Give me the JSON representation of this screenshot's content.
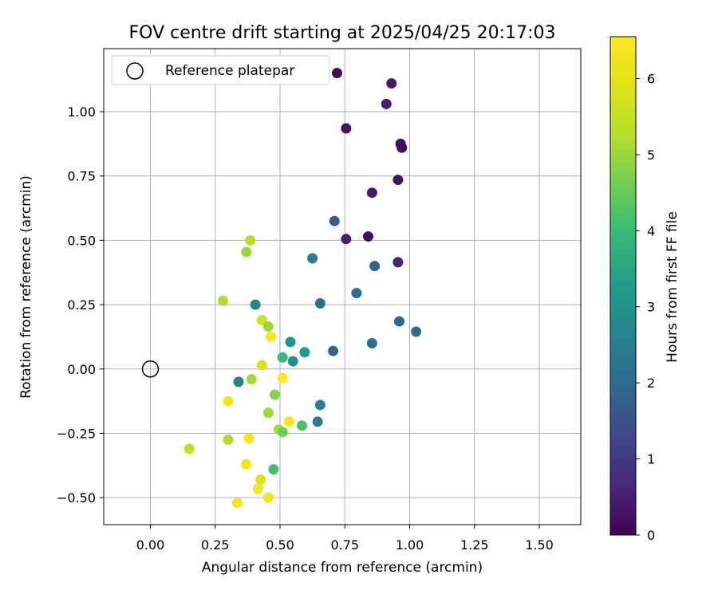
{
  "chart_data": {
    "type": "scatter",
    "title": "FOV centre drift starting at 2025/04/25 20:17:03",
    "xlabel": "Angular distance from reference (arcmin)",
    "ylabel": "Rotation from reference (arcmin)",
    "xlim": [
      -0.18,
      1.66
    ],
    "ylim": [
      -0.605,
      1.245
    ],
    "xticks": [
      0.0,
      0.25,
      0.5,
      0.75,
      1.0,
      1.25,
      1.5
    ],
    "xtick_labels": [
      "0.00",
      "0.25",
      "0.50",
      "0.75",
      "1.00",
      "1.25",
      "1.50"
    ],
    "yticks": [
      -0.5,
      -0.25,
      0.0,
      0.25,
      0.5,
      0.75,
      1.0
    ],
    "ytick_labels": [
      "−0.50",
      "−0.25",
      "0.00",
      "0.25",
      "0.50",
      "0.75",
      "1.00"
    ],
    "grid": true,
    "legend": {
      "placement": "top-left",
      "entries": [
        "Reference platepar"
      ]
    },
    "reference_point": {
      "x": 0.0,
      "y": 0.0,
      "marker": "open-circle"
    },
    "colorbar": {
      "label": "Hours from first FF file",
      "colormap": "viridis",
      "range": [
        0,
        6.55
      ],
      "ticks": [
        0,
        1,
        2,
        3,
        4,
        5,
        6
      ],
      "tick_labels": [
        "0",
        "1",
        "2",
        "3",
        "4",
        "5",
        "6"
      ]
    },
    "points": [
      {
        "x": 0.72,
        "y": 1.15,
        "c": 0.1
      },
      {
        "x": 0.93,
        "y": 1.11,
        "c": 0.4
      },
      {
        "x": 0.91,
        "y": 1.03,
        "c": 0.5
      },
      {
        "x": 0.755,
        "y": 0.935,
        "c": 0.3
      },
      {
        "x": 0.965,
        "y": 0.875,
        "c": 0.2
      },
      {
        "x": 0.97,
        "y": 0.86,
        "c": 0.1
      },
      {
        "x": 0.955,
        "y": 0.735,
        "c": 0.3
      },
      {
        "x": 0.855,
        "y": 0.685,
        "c": 0.4
      },
      {
        "x": 0.71,
        "y": 0.575,
        "c": 1.7
      },
      {
        "x": 0.755,
        "y": 0.505,
        "c": 0.5
      },
      {
        "x": 0.84,
        "y": 0.515,
        "c": 0.2
      },
      {
        "x": 0.955,
        "y": 0.415,
        "c": 0.6
      },
      {
        "x": 0.865,
        "y": 0.4,
        "c": 1.9
      },
      {
        "x": 0.625,
        "y": 0.43,
        "c": 2.5
      },
      {
        "x": 0.795,
        "y": 0.295,
        "c": 2.0
      },
      {
        "x": 0.655,
        "y": 0.255,
        "c": 2.1
      },
      {
        "x": 0.96,
        "y": 0.185,
        "c": 2.0
      },
      {
        "x": 1.025,
        "y": 0.145,
        "c": 2.1
      },
      {
        "x": 0.855,
        "y": 0.1,
        "c": 2.1
      },
      {
        "x": 0.705,
        "y": 0.07,
        "c": 1.9
      },
      {
        "x": 0.405,
        "y": 0.25,
        "c": 2.7
      },
      {
        "x": 0.54,
        "y": 0.105,
        "c": 3.1
      },
      {
        "x": 0.595,
        "y": 0.065,
        "c": 3.2
      },
      {
        "x": 0.55,
        "y": 0.03,
        "c": 2.9
      },
      {
        "x": 0.51,
        "y": 0.045,
        "c": 4.0
      },
      {
        "x": 0.34,
        "y": -0.05,
        "c": 2.7
      },
      {
        "x": 0.655,
        "y": -0.14,
        "c": 2.5
      },
      {
        "x": 0.645,
        "y": -0.205,
        "c": 2.5
      },
      {
        "x": 0.585,
        "y": -0.22,
        "c": 4.2
      },
      {
        "x": 0.475,
        "y": -0.39,
        "c": 4.1
      },
      {
        "x": 0.385,
        "y": 0.5,
        "c": 5.3
      },
      {
        "x": 0.37,
        "y": 0.455,
        "c": 5.0
      },
      {
        "x": 0.28,
        "y": 0.265,
        "c": 5.2
      },
      {
        "x": 0.43,
        "y": 0.19,
        "c": 5.7
      },
      {
        "x": 0.455,
        "y": 0.165,
        "c": 5.0
      },
      {
        "x": 0.465,
        "y": 0.125,
        "c": 6.4
      },
      {
        "x": 0.43,
        "y": 0.015,
        "c": 5.8
      },
      {
        "x": 0.39,
        "y": -0.04,
        "c": 5.1
      },
      {
        "x": 0.51,
        "y": -0.035,
        "c": 6.5
      },
      {
        "x": 0.48,
        "y": -0.1,
        "c": 4.8
      },
      {
        "x": 0.3,
        "y": -0.125,
        "c": 6.3
      },
      {
        "x": 0.455,
        "y": -0.17,
        "c": 5.0
      },
      {
        "x": 0.535,
        "y": -0.205,
        "c": 6.4
      },
      {
        "x": 0.495,
        "y": -0.235,
        "c": 5.1
      },
      {
        "x": 0.51,
        "y": -0.245,
        "c": 4.6
      },
      {
        "x": 0.3,
        "y": -0.275,
        "c": 5.2
      },
      {
        "x": 0.38,
        "y": -0.27,
        "c": 6.4
      },
      {
        "x": 0.15,
        "y": -0.31,
        "c": 5.4
      },
      {
        "x": 0.37,
        "y": -0.37,
        "c": 6.4
      },
      {
        "x": 0.415,
        "y": -0.465,
        "c": 6.3
      },
      {
        "x": 0.425,
        "y": -0.43,
        "c": 5.9
      },
      {
        "x": 0.455,
        "y": -0.5,
        "c": 6.3
      },
      {
        "x": 0.335,
        "y": -0.52,
        "c": 6.4
      }
    ]
  }
}
